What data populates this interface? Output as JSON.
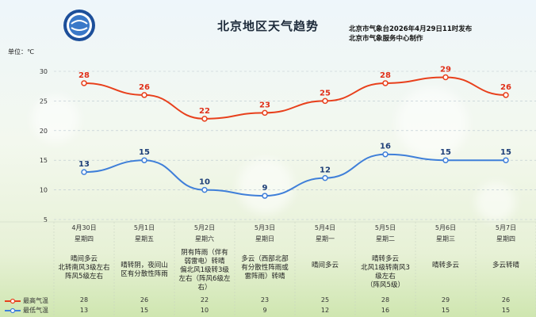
{
  "header": {
    "title": "北京地区天气趋势",
    "issuer_line1": "北京市气象台2026年4月29日11时发布",
    "issuer_line2": "北京市气象服务中心制作",
    "unit_label": "单位：℃"
  },
  "chart_data": {
    "type": "line",
    "ylim": [
      5,
      30
    ],
    "yticks": [
      5,
      10,
      15,
      20,
      25,
      30
    ],
    "categories": [
      "4月30日",
      "5月1日",
      "5月2日",
      "5月3日",
      "5月4日",
      "5月5日",
      "5月6日",
      "5月7日"
    ],
    "weekdays": [
      "星期四",
      "星期五",
      "星期六",
      "星期日",
      "星期一",
      "星期二",
      "星期三",
      "星期四"
    ],
    "weather": [
      "晴间多云\n北转南风3级左右\n阵风5级左右",
      "晴转阴，夜间山\n区有分散性阵雨",
      "阴有阵雨（伴有\n弱雷电）转晴\n偏北风1级转3级\n左右（阵风6级左\n右）",
      "多云（西部北部\n有分散性阵雨或\n雷阵雨）转晴",
      "晴间多云",
      "晴转多云\n北风1级转南风3\n级左右\n（阵风5级）",
      "晴转多云",
      "多云转晴"
    ],
    "series": [
      {
        "name": "最高气温",
        "color": "#e8401c",
        "values": [
          28,
          26,
          22,
          23,
          25,
          28,
          29,
          26
        ]
      },
      {
        "name": "最低气温",
        "color": "#3f7fd9",
        "values": [
          13,
          15,
          10,
          9,
          12,
          16,
          15,
          15
        ]
      }
    ]
  },
  "colors": {
    "high": "#e8401c",
    "low": "#3f7fd9",
    "grid": "#b9c7cf"
  }
}
